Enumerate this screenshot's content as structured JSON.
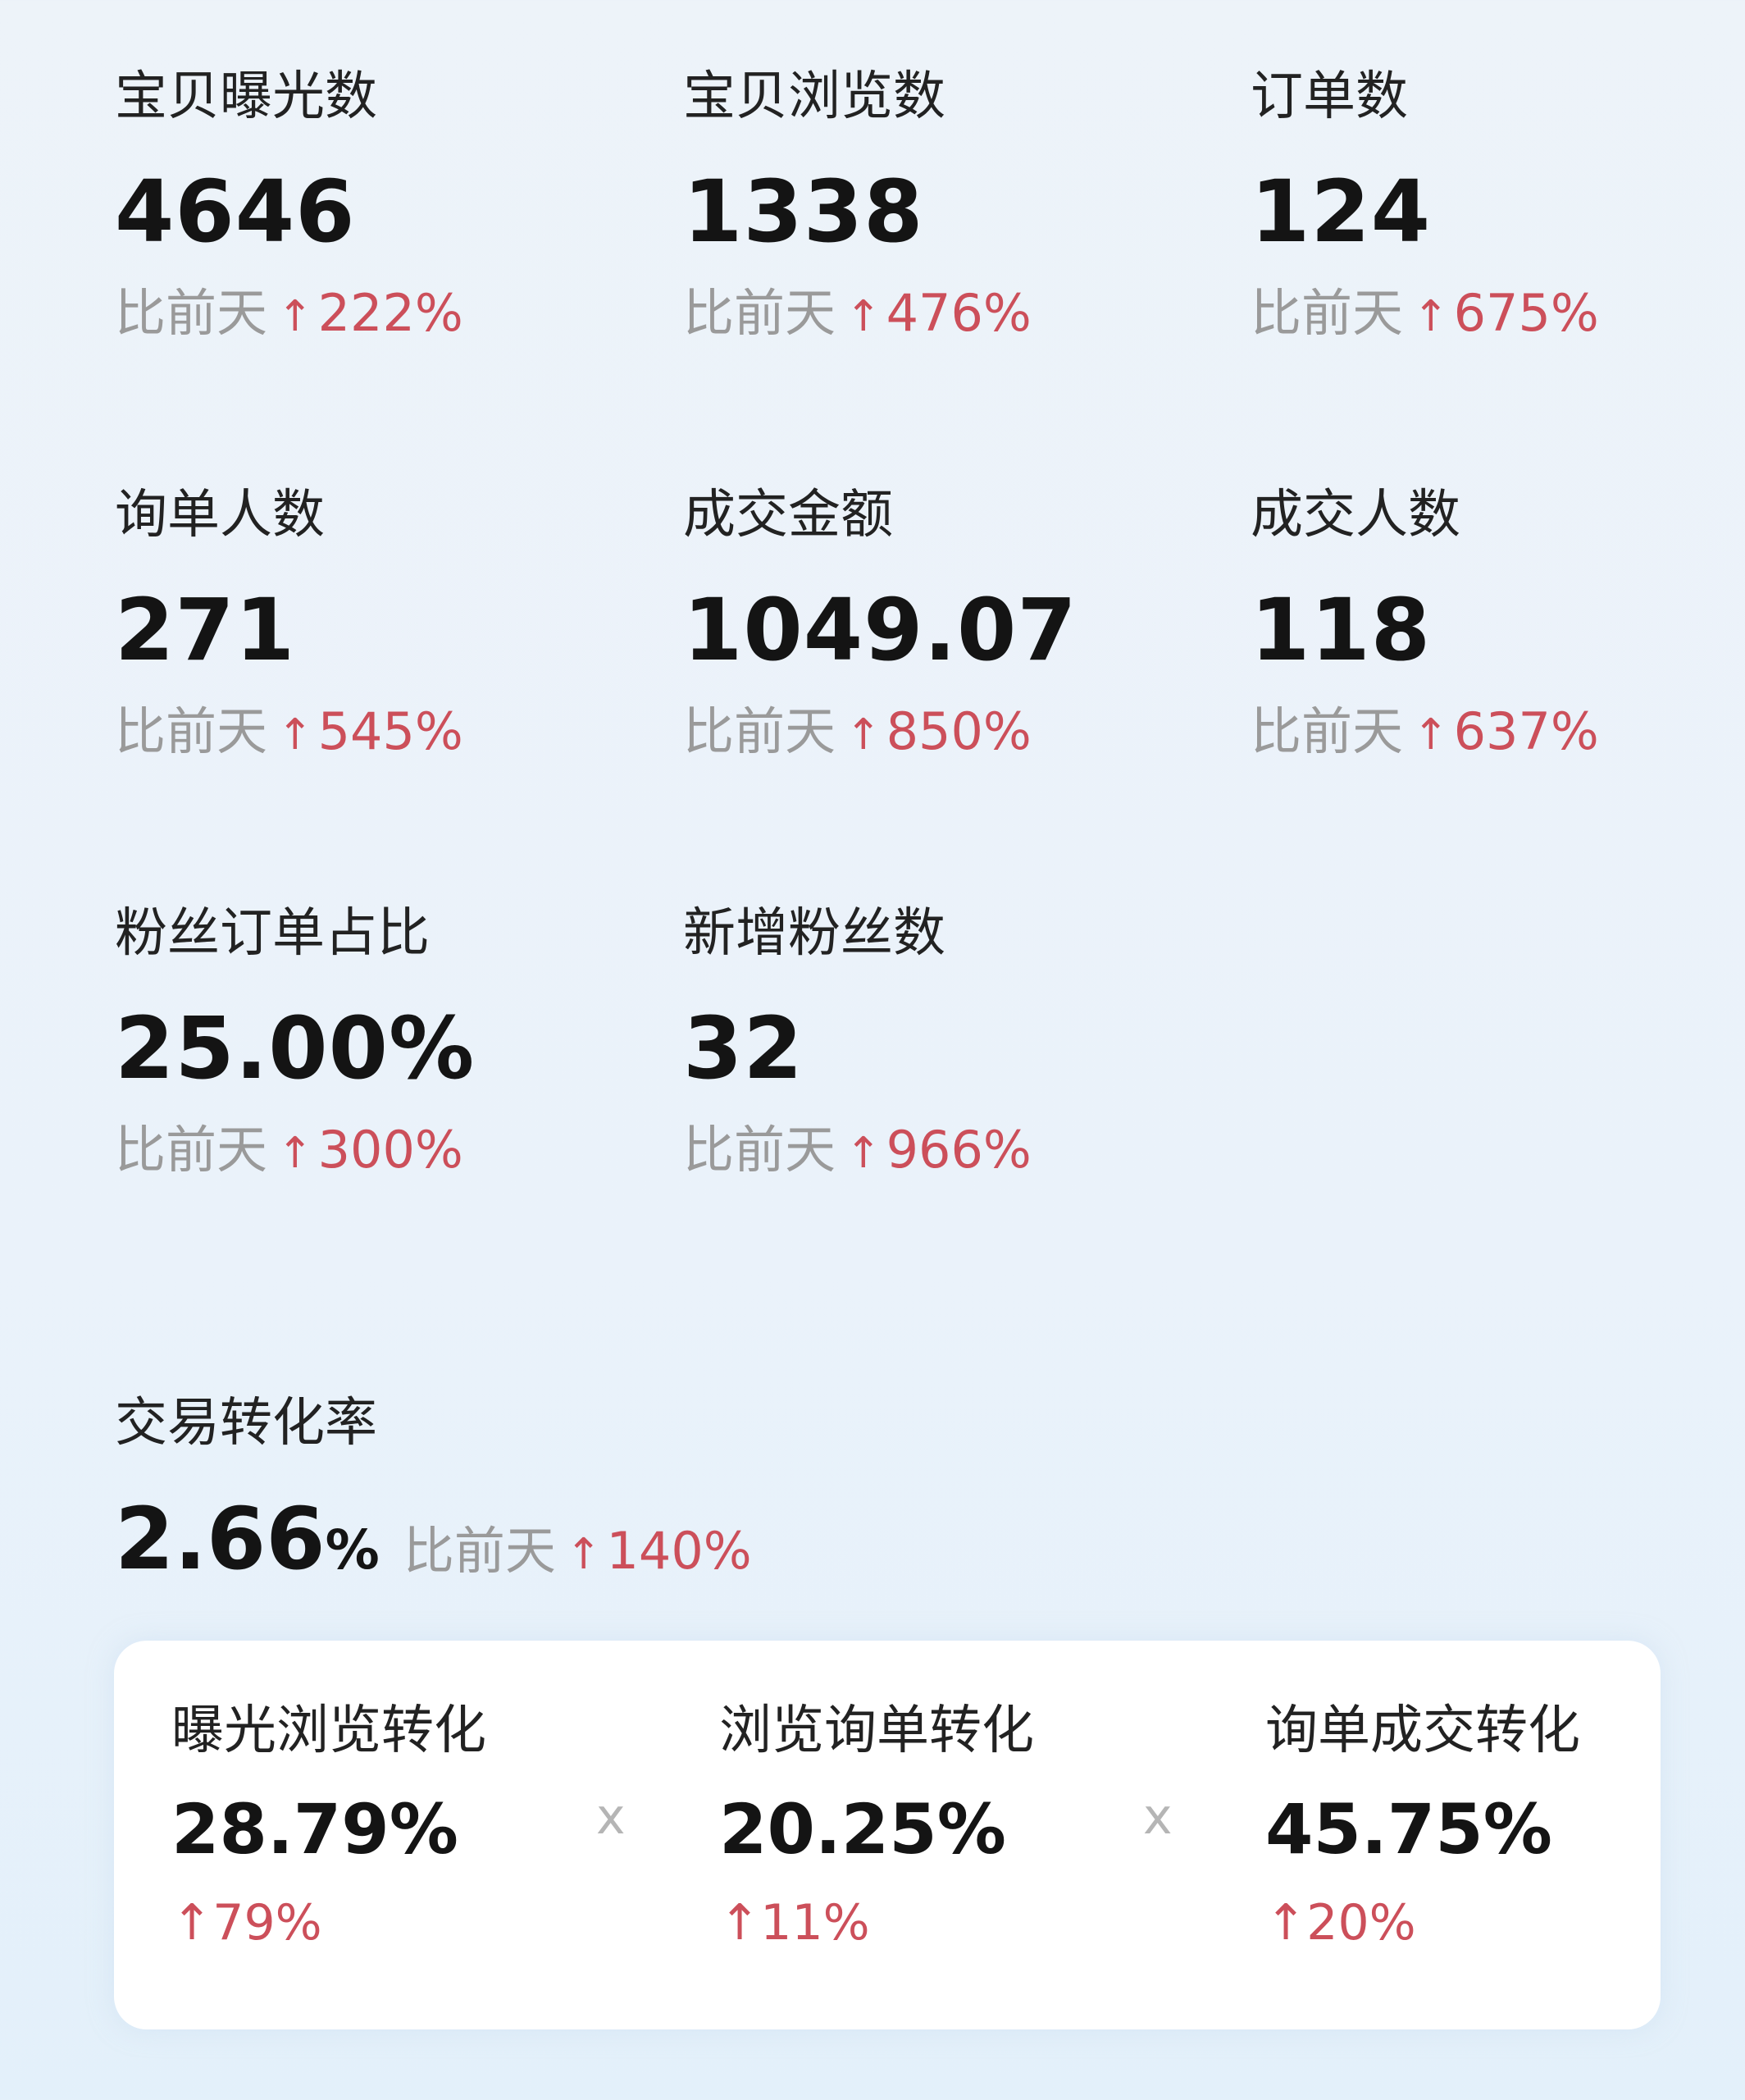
{
  "compare_label": "比前天",
  "colors": {
    "up": "#cc4f5a",
    "text": "#141414",
    "muted": "#9a9a9a",
    "background": "#eaf2fa"
  },
  "icons": {
    "trend": "arrow-up-icon",
    "multiply": "multiply-icon"
  },
  "arrow": "↑",
  "metrics": [
    {
      "label": "宝贝曝光数",
      "value": "4646",
      "change": "222%"
    },
    {
      "label": "宝贝浏览数",
      "value": "1338",
      "change": "476%"
    },
    {
      "label": "订单数",
      "value": "124",
      "change": "675%"
    },
    {
      "label": "询单人数",
      "value": "271",
      "change": "545%"
    },
    {
      "label": "成交金额",
      "value": "1049.07",
      "change": "850%"
    },
    {
      "label": "成交人数",
      "value": "118",
      "change": "637%"
    },
    {
      "label": "粉丝订单占比",
      "value": "25.00%",
      "change": "300%"
    },
    {
      "label": "新增粉丝数",
      "value": "32",
      "change": "966%"
    }
  ],
  "conversion": {
    "title": "交易转化率",
    "value": "2.66",
    "unit": "%",
    "change": "140%",
    "multiply_sign": "x",
    "steps": [
      {
        "label": "曝光浏览转化",
        "value": "28.79%",
        "change": "79%"
      },
      {
        "label": "浏览询单转化",
        "value": "20.25%",
        "change": "11%"
      },
      {
        "label": "询单成交转化",
        "value": "45.75%",
        "change": "20%"
      }
    ]
  }
}
